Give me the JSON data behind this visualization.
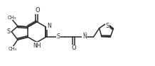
{
  "bg_color": "#ffffff",
  "line_color": "#2a2a2a",
  "line_width": 1.1,
  "figsize": [
    2.18,
    0.93
  ],
  "dpi": 100,
  "xlim": [
    0,
    10.8
  ],
  "ylim": [
    0.5,
    5.0
  ]
}
